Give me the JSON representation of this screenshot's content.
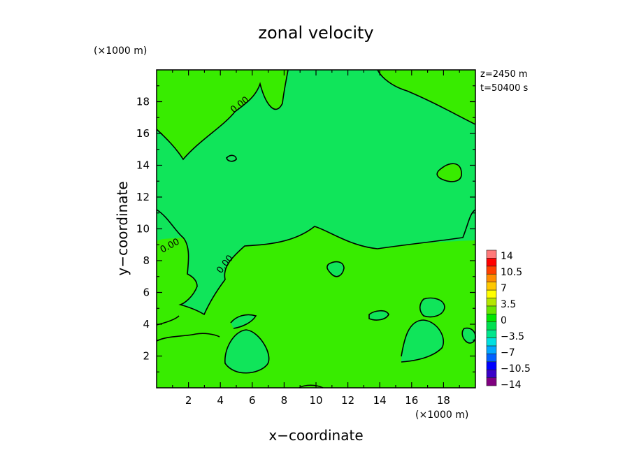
{
  "chart_data": {
    "type": "heatmap",
    "title": "zonal velocity",
    "xlabel": "x−coordinate",
    "ylabel": "y−coordinate",
    "x_units": "(×1000 m)",
    "y_units": "(×1000 m)",
    "xlim": [
      0,
      20
    ],
    "ylim": [
      0,
      20
    ],
    "x_ticks": [
      "2",
      "4",
      "6",
      "8",
      "10",
      "12",
      "14",
      "16",
      "18"
    ],
    "y_ticks": [
      "2",
      "4",
      "6",
      "8",
      "10",
      "12",
      "14",
      "16",
      "18"
    ],
    "info": [
      "z=2450  m",
      "t=50400  s"
    ],
    "contour_level_label": "0.00",
    "colorbar": {
      "labels": [
        "14",
        "10.5",
        "7",
        "3.5",
        "0",
        "−3.5",
        "−7",
        "−10.5",
        "−14"
      ],
      "colors": [
        "#800080",
        "#3a00c8",
        "#0000ff",
        "#0060ff",
        "#00a8ff",
        "#00e0e0",
        "#00e68c",
        "#00e050",
        "#00e600",
        "#66e600",
        "#b4e600",
        "#ffff00",
        "#ffc800",
        "#ff8c00",
        "#ff4000",
        "#ff0000",
        "#ff7a7a"
      ]
    },
    "field_colors": {
      "positive": "#38ec00",
      "negative": "#10e55a"
    }
  }
}
